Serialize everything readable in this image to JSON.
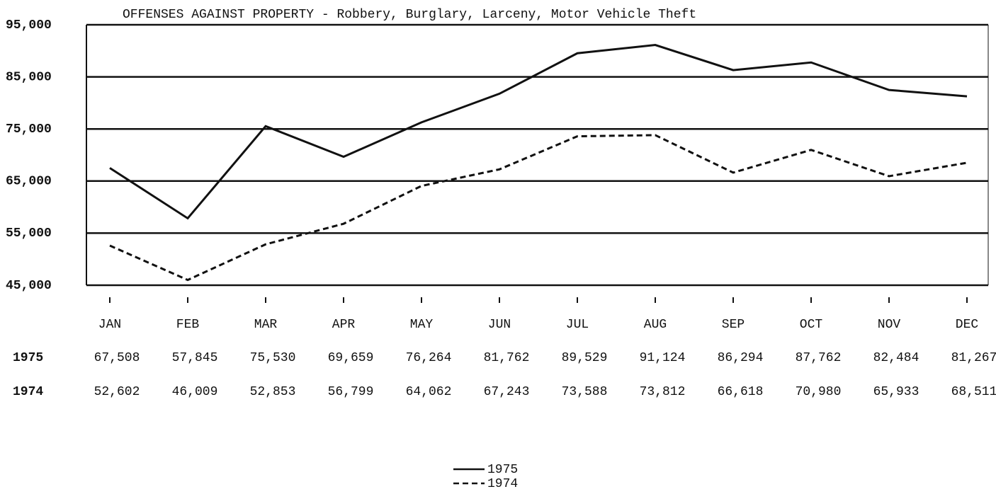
{
  "chart_data": {
    "type": "line",
    "title": "OFFENSES AGAINST PROPERTY - Robbery, Burglary, Larceny, Motor Vehicle Theft",
    "categories": [
      "JAN",
      "FEB",
      "MAR",
      "APR",
      "MAY",
      "JUN",
      "JUL",
      "AUG",
      "SEP",
      "OCT",
      "NOV",
      "DEC"
    ],
    "series": [
      {
        "name": "1975",
        "color": "#111111",
        "line_style": "solid",
        "values": [
          67508,
          57845,
          75530,
          69659,
          76264,
          81762,
          89529,
          91124,
          86294,
          87762,
          82484,
          81267
        ],
        "value_labels": [
          "67,508",
          "57,845",
          "75,530",
          "69,659",
          "76,264",
          "81,762",
          "89,529",
          "91,124",
          "86,294",
          "87,762",
          "82,484",
          "81,267"
        ]
      },
      {
        "name": "1974",
        "color": "#111111",
        "line_style": "dashed",
        "values": [
          52602,
          46009,
          52853,
          56799,
          64062,
          67243,
          73588,
          73812,
          66618,
          70980,
          65933,
          68511
        ],
        "value_labels": [
          "52,602",
          "46,009",
          "52,853",
          "56,799",
          "64,062",
          "67,243",
          "73,588",
          "73,812",
          "66,618",
          "70,980",
          "65,933",
          "68,511"
        ]
      }
    ],
    "ylim": [
      45000,
      95000
    ],
    "yticks": [
      {
        "value": 45000,
        "label": "45,000"
      },
      {
        "value": 55000,
        "label": "55,000"
      },
      {
        "value": 65000,
        "label": "65,000"
      },
      {
        "value": 75000,
        "label": "75,000"
      },
      {
        "value": 85000,
        "label": "85,000"
      },
      {
        "value": 95000,
        "label": "95,000"
      }
    ],
    "grid": true
  }
}
